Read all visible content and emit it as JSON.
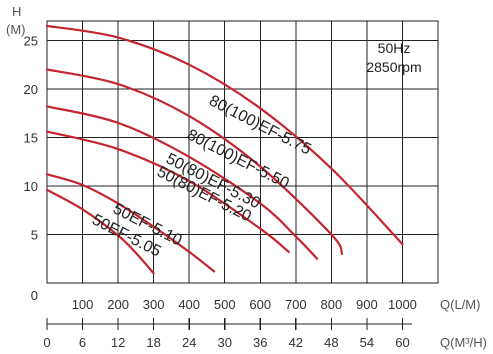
{
  "chart_data": {
    "type": "line",
    "y_axis": {
      "label_line1": "H",
      "label_line2": "(M)",
      "range": [
        0,
        27
      ],
      "ticks": [
        5,
        10,
        15,
        20,
        25
      ],
      "zero_label": "0"
    },
    "x_axis": {
      "label": "Q(L/M)",
      "range": [
        0,
        1100
      ],
      "ticks": [
        100,
        200,
        300,
        400,
        500,
        600,
        700,
        800,
        900,
        1000
      ]
    },
    "x2_axis": {
      "label": "Q(M³/H)",
      "range": [
        0,
        66
      ],
      "ticks": [
        0,
        6,
        12,
        18,
        24,
        30,
        36,
        42,
        48,
        54,
        60
      ]
    },
    "grid": true,
    "annotation": {
      "line1": "50Hz",
      "line2": "2850rpm"
    },
    "line_color": "#c4252f",
    "series": [
      {
        "name": "80(100)EF-5.75",
        "x": [
          0,
          200,
          400,
          600,
          800,
          1000
        ],
        "y": [
          26.5,
          25.3,
          22.5,
          18.0,
          11.8,
          4.0
        ]
      },
      {
        "name": "80(100)EF-5.50",
        "x": [
          0,
          200,
          400,
          600,
          800,
          830
        ],
        "y": [
          22.0,
          20.5,
          17.2,
          12.0,
          5.0,
          3.0
        ]
      },
      {
        "name": "50(80)EF-5.30",
        "x": [
          0,
          200,
          400,
          600,
          700,
          760
        ],
        "y": [
          18.2,
          16.5,
          13.0,
          8.2,
          4.8,
          2.5
        ]
      },
      {
        "name": "50(80)EF-5.20",
        "x": [
          0,
          200,
          400,
          600,
          680
        ],
        "y": [
          15.6,
          13.8,
          10.5,
          5.6,
          3.2
        ]
      },
      {
        "name": "50EF-5.10",
        "x": [
          0,
          100,
          200,
          300,
          400,
          470
        ],
        "y": [
          11.2,
          10.1,
          8.2,
          5.8,
          3.2,
          1.2
        ]
      },
      {
        "name": "50EF-5.05",
        "x": [
          0,
          100,
          200,
          250,
          300
        ],
        "y": [
          9.6,
          7.6,
          4.9,
          3.1,
          1.0
        ]
      }
    ]
  }
}
